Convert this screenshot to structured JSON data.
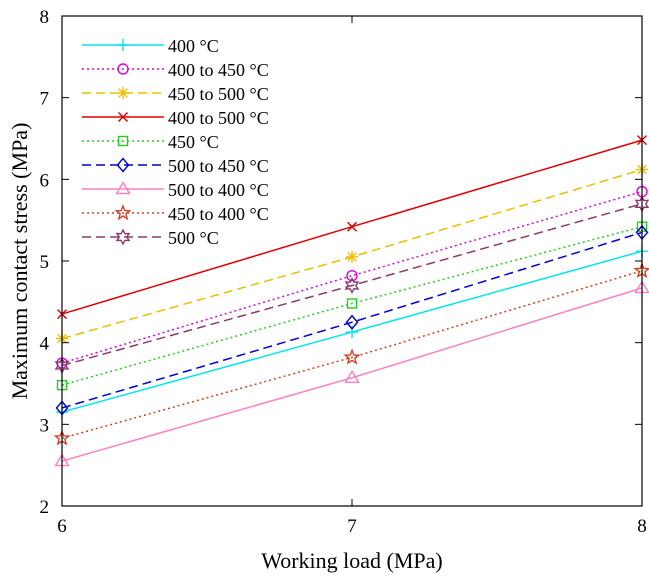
{
  "chart_data": {
    "type": "line",
    "title": "",
    "xlabel": "Working load (MPa)",
    "ylabel": "Maximum contact stress (MPa)",
    "x": [
      6,
      7,
      8
    ],
    "xlim": [
      6,
      8
    ],
    "ylim": [
      2,
      8
    ],
    "xticks": [
      "6",
      "7",
      "8"
    ],
    "yticks": [
      "2",
      "3",
      "4",
      "5",
      "6",
      "7",
      "8"
    ],
    "grid": false,
    "legend_position": "top-left",
    "series": [
      {
        "name": "400 °C",
        "values": [
          3.15,
          4.13,
          5.12
        ],
        "color": "#00e5ee",
        "dash": "",
        "marker": "plus"
      },
      {
        "name": "400 to 450 °C",
        "values": [
          3.75,
          4.82,
          5.85
        ],
        "color": "#e000e0",
        "dash": "2,3",
        "marker": "circle"
      },
      {
        "name": "450 to 500 °C",
        "values": [
          4.05,
          5.05,
          6.12
        ],
        "color": "#e8c000",
        "dash": "9,5",
        "marker": "asterisk"
      },
      {
        "name": "400 to 500 °C",
        "values": [
          4.35,
          5.42,
          6.48
        ],
        "color": "#e00000",
        "dash": "",
        "marker": "x"
      },
      {
        "name": "450 °C",
        "values": [
          3.48,
          4.48,
          5.42
        ],
        "color": "#20d020",
        "dash": "2,3",
        "marker": "square"
      },
      {
        "name": "500 to 450 °C",
        "values": [
          3.2,
          4.25,
          5.35
        ],
        "color": "#0000d0",
        "dash": "9,5",
        "marker": "diamond"
      },
      {
        "name": "500 to 400 °C",
        "values": [
          2.55,
          3.57,
          4.67
        ],
        "color": "#ff80c0",
        "dash": "",
        "marker": "triangle"
      },
      {
        "name": "450 to 400 °C",
        "values": [
          2.83,
          3.82,
          4.88
        ],
        "color": "#d04020",
        "dash": "2,3",
        "marker": "star"
      },
      {
        "name": "500 °C",
        "values": [
          3.72,
          4.7,
          5.7
        ],
        "color": "#8b3a6a",
        "dash": "9,5",
        "marker": "hexagram"
      }
    ]
  }
}
